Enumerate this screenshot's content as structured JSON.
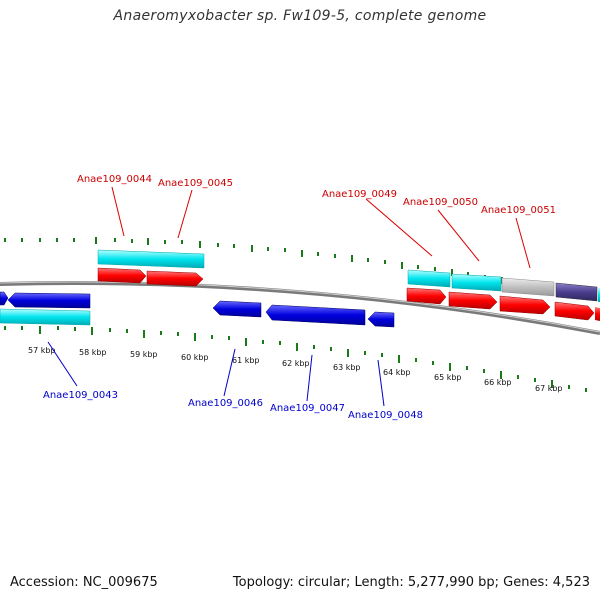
{
  "title": "Anaeromyxobacter sp. Fw109-5, complete genome",
  "footer": {
    "accession": "Accession: NC_009675",
    "topology": "Topology: circular; Length: 5,277,990 bp; Genes: 4,523"
  },
  "colors": {
    "forward_gene": "#ff0000",
    "reverse_gene": "#0000dd",
    "forward_cds_track": "#00e5ee",
    "gray_gene": "#c0c0c0",
    "purple_gene": "#4b3f8f",
    "tick": "#1a7a1a",
    "forward_label": "#cc0000",
    "reverse_label": "#0000cc"
  },
  "kbp_labels": [
    "57 kbp",
    "58 kbp",
    "59 kbp",
    "60 kbp",
    "61 kbp",
    "62 kbp",
    "63 kbp",
    "64 kbp",
    "65 kbp",
    "66 kbp",
    "67 kbp"
  ],
  "genes": {
    "forward": [
      "Anae109_0044",
      "Anae109_0045",
      "Anae109_0049",
      "Anae109_0050",
      "Anae109_0051"
    ],
    "reverse": [
      "Anae109_0043",
      "Anae109_0046",
      "Anae109_0047",
      "Anae109_0048"
    ]
  }
}
